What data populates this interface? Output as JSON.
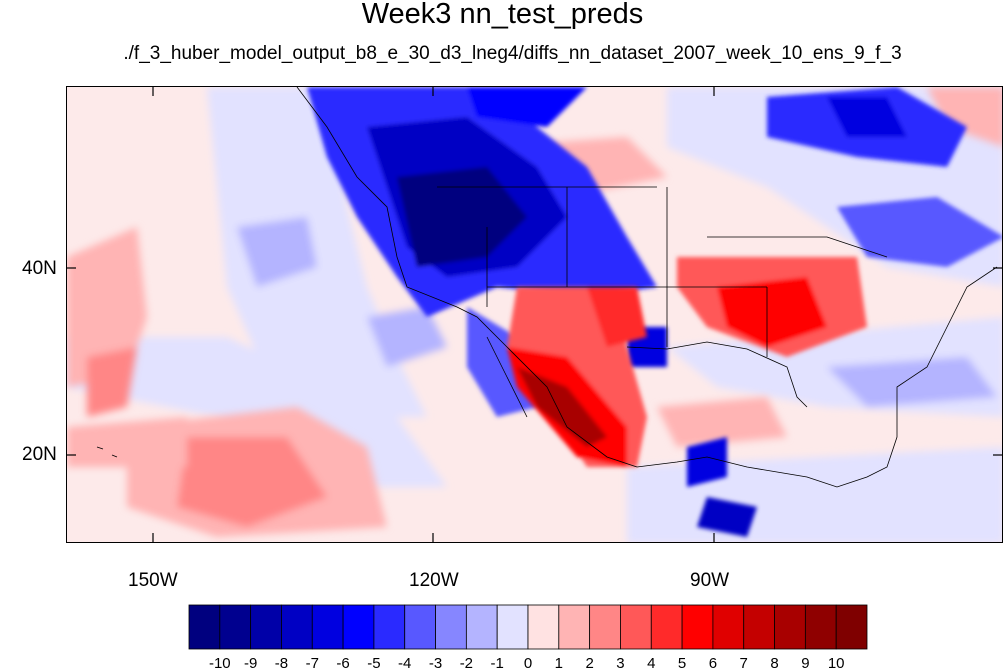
{
  "title": "Week3 nn_test_preds",
  "subtitle": "./f_3_huber_model_output_b8_e_30_d3_lneg4/diffs_nn_dataset_2007_week_10_ens_9_f_3",
  "axes": {
    "lon_labels": [
      "150W",
      "120W",
      "90W"
    ],
    "lat_labels": [
      "40N",
      "20N"
    ]
  },
  "colorbar": {
    "labels": [
      "-10",
      "-9",
      "-8",
      "-7",
      "-6",
      "-5",
      "-4",
      "-3",
      "-2",
      "-1",
      "0",
      "1",
      "2",
      "3",
      "4",
      "5",
      "6",
      "7",
      "8",
      "9",
      "10"
    ],
    "colors": [
      "#00007f",
      "#00008f",
      "#0000a8",
      "#0000c4",
      "#0000e0",
      "#0000ff",
      "#2a2aff",
      "#5858ff",
      "#8686ff",
      "#b4b4ff",
      "#e2e2ff",
      "#ffe2e2",
      "#ffb4b4",
      "#ff8686",
      "#ff5858",
      "#ff2a2a",
      "#ff0000",
      "#e00000",
      "#c40000",
      "#a80000",
      "#8f0000",
      "#7f0000"
    ]
  },
  "chart_data": {
    "type": "heatmap",
    "title": "Week3 nn_test_preds",
    "subtitle": "./f_3_huber_model_output_b8_e_30_d3_lneg4/diffs_nn_dataset_2007_week_10_ens_9_f_3",
    "x_ticks": [
      "150W",
      "120W",
      "90W"
    ],
    "y_ticks": [
      "40N",
      "20N"
    ],
    "colorbar_range": [
      -10,
      10
    ],
    "colorbar_step": 1,
    "regions": [
      {
        "area": "US Pacific Northwest / Great Basin",
        "value": -10
      },
      {
        "area": "Western Canada / Rockies",
        "value": -6
      },
      {
        "area": "Northeastern Canada (Hudson Bay)",
        "value": -5
      },
      {
        "area": "Southeastern US (Tennessee Valley)",
        "value": 5
      },
      {
        "area": "Northwestern Mexico (Sierra Madre)",
        "value": 9
      },
      {
        "area": "Arizona / New Mexico",
        "value": 5
      },
      {
        "area": "Central Pacific subtropics",
        "value": 2
      },
      {
        "area": "Eastern Pacific off Baja",
        "value": -2
      }
    ]
  }
}
